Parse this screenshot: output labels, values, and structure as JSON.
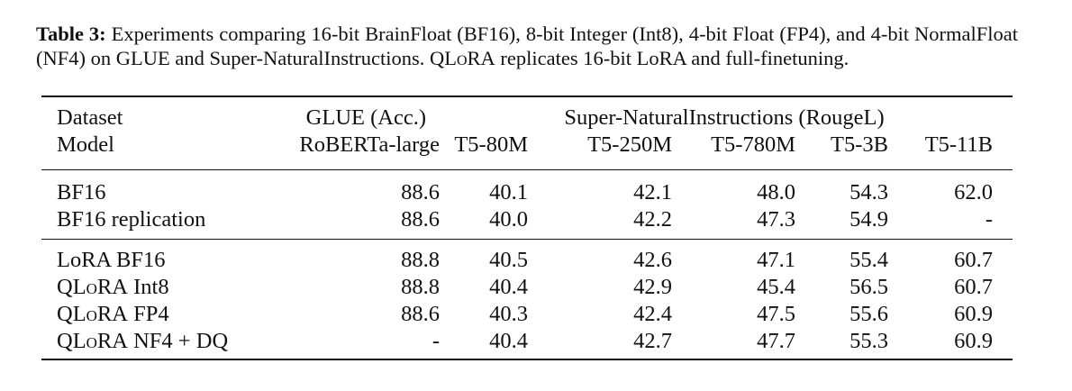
{
  "caption": {
    "label": "Table 3:",
    "text_1": " Experiments comparing 16-bit BrainFloat (BF16), 8-bit Integer (Int8), 4-bit Float (FP4), and 4-bit NormalFloat (NF4) on GLUE and Super-NaturalInstructions. Q",
    "lora_sc": "LoRA",
    "text_2": " replicates 16-bit LoRA and full-finetuning."
  },
  "header": {
    "row1": {
      "dataset": "Dataset",
      "glue": "GLUE (Acc.)",
      "sni": "Super-NaturalInstructions (RougeL)"
    },
    "row2": {
      "model": "Model",
      "roberta": "RoBERTa-large",
      "t5_80m": "T5-80M",
      "t5_250m": "T5-250M",
      "t5_780m": "T5-780M",
      "t5_3b": "T5-3B",
      "t5_11b": "T5-11B"
    }
  },
  "group1": [
    {
      "name_pre": "BF16",
      "name_sc": "",
      "name_post": "",
      "glue": "88.6",
      "t5_80m": "40.1",
      "t5_250m": "42.1",
      "t5_780m": "48.0",
      "t5_3b": "54.3",
      "t5_11b": "62.0"
    },
    {
      "name_pre": "BF16 replication",
      "name_sc": "",
      "name_post": "",
      "glue": "88.6",
      "t5_80m": "40.0",
      "t5_250m": "42.2",
      "t5_780m": "47.3",
      "t5_3b": "54.9",
      "t5_11b": "-"
    }
  ],
  "group2": [
    {
      "name_pre": "LoRA BF16",
      "name_sc": "",
      "name_post": "",
      "glue": "88.8",
      "t5_80m": "40.5",
      "t5_250m": "42.6",
      "t5_780m": "47.1",
      "t5_3b": "55.4",
      "t5_11b": "60.7"
    },
    {
      "name_pre": "Q",
      "name_sc": "LoRA",
      "name_post": " Int8",
      "glue": "88.8",
      "t5_80m": "40.4",
      "t5_250m": "42.9",
      "t5_780m": "45.4",
      "t5_3b": "56.5",
      "t5_11b": "60.7"
    },
    {
      "name_pre": "Q",
      "name_sc": "LoRA",
      "name_post": " FP4",
      "glue": "88.6",
      "t5_80m": "40.3",
      "t5_250m": "42.4",
      "t5_780m": "47.5",
      "t5_3b": "55.6",
      "t5_11b": "60.9"
    },
    {
      "name_pre": "Q",
      "name_sc": "LoRA",
      "name_post": " NF4 + DQ",
      "glue": "-",
      "t5_80m": "40.4",
      "t5_250m": "42.7",
      "t5_780m": "47.7",
      "t5_3b": "55.3",
      "t5_11b": "60.9"
    }
  ]
}
